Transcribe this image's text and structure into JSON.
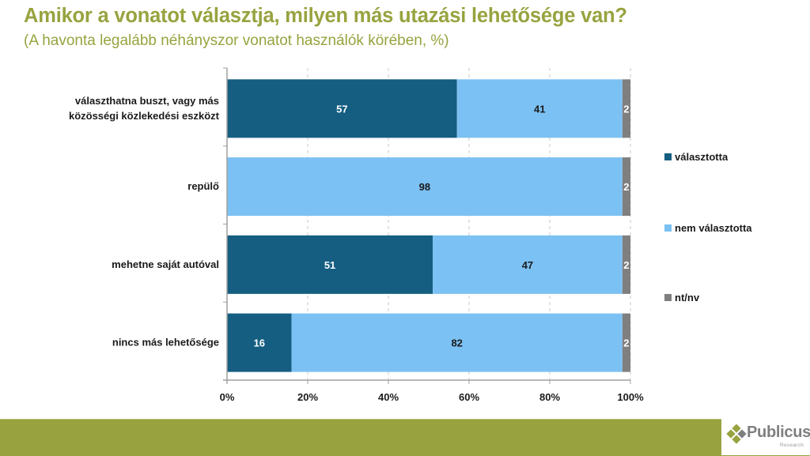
{
  "header": {
    "title": "Amikor a vonatot választja, milyen más utazási lehetősége van?",
    "subtitle": "(A havonta legalább néhányszor vonatot használók körében, %)"
  },
  "chart_data": {
    "type": "bar",
    "orientation": "horizontal",
    "stacked": "percent",
    "title": "Amikor a vonatot választja, milyen más utazási lehetősége van?",
    "subtitle": "(A havonta legalább néhányszor vonatot használók körében, %)",
    "categories": [
      [
        "választhatna buszt, vagy más",
        "közösségi közlekedési eszközt"
      ],
      [
        "repülő"
      ],
      [
        "mehetne saját autóval"
      ],
      [
        "nincs más lehetősége"
      ]
    ],
    "series": [
      {
        "name": "választotta",
        "color": "#155e82",
        "values": [
          57,
          0,
          51,
          16
        ],
        "label_color": "#ffffff"
      },
      {
        "name": "nem választotta",
        "color": "#7cc1f3",
        "values": [
          41,
          98,
          47,
          82
        ],
        "label_color": "#1a1a1a"
      },
      {
        "name": "nt/nv",
        "color": "#7f7f7f",
        "values": [
          2,
          2,
          2,
          2
        ],
        "label_color": "#ffffff"
      }
    ],
    "xlim": [
      0,
      100
    ],
    "xticks": [
      "0%",
      "20%",
      "40%",
      "60%",
      "80%",
      "100%"
    ],
    "grid": "vertical dashed",
    "legend": "right",
    "xlabel": "",
    "ylabel": ""
  },
  "footer": {
    "brand": "Publicus",
    "brand_sub": "Research",
    "band_color": "#98a33f"
  }
}
